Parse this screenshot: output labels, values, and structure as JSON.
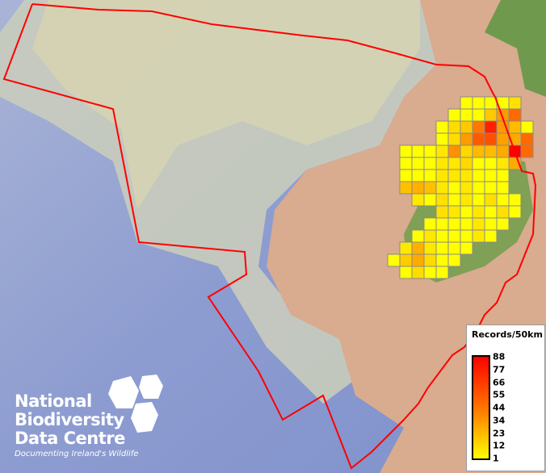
{
  "legend": {
    "title": "Records/50km",
    "ticks": [
      "88",
      "77",
      "66",
      "55",
      "44",
      "34",
      "23",
      "12",
      "1"
    ],
    "ramp_colors": [
      "#ff0000",
      "#ff8000",
      "#ffff00"
    ]
  },
  "logo": {
    "line1": "National",
    "line2": "Biodiversity",
    "line3": "Data Centre",
    "tagline": "Documenting Ireland's Wildlife"
  },
  "colors": {
    "boundary": "#ff0000",
    "grid_border": "#8a8a8a",
    "sea": "#8f9fd0",
    "land": "#d9ab8f"
  },
  "grid": [
    {
      "row": 0,
      "start": 6,
      "cells": [
        "#ffff00",
        "#ffff00",
        "#ffff00",
        "#ffff00",
        "#ffe000"
      ]
    },
    {
      "row": 1,
      "start": 5,
      "cells": [
        "#ffff00",
        "#ffff00",
        "#ffff00",
        "#ffc800",
        "#ff9a00",
        "#ff6a00"
      ]
    },
    {
      "row": 2,
      "start": 4,
      "cells": [
        "#ffff00",
        "#ffdc00",
        "#ffc800",
        "#ff7800",
        "#ff2000",
        "#ff9a00",
        "#ffbb00",
        "#ffff00"
      ]
    },
    {
      "row": 3,
      "start": 4,
      "cells": [
        "#ffff00",
        "#ffdc00",
        "#ff9a00",
        "#ff5a00",
        "#ff5000",
        "#ffa000",
        "#ffaa00",
        "#ff6a00"
      ]
    },
    {
      "row": 4,
      "start": 1,
      "cells": [
        "#ffff00",
        "#ffff00",
        "#ffff00",
        "#ffe800",
        "#ff9000",
        "#ffd800",
        "#ffbb00",
        "#ffbb00",
        "#ffaa00",
        "#ff0000",
        "#ff6a00"
      ]
    },
    {
      "row": 5,
      "start": 1,
      "cells": [
        "#ffff00",
        "#ffff00",
        "#ffff00",
        "#ffe800",
        "#ffe800",
        "#ffd800",
        "#ffff00",
        "#ffff00",
        "#ffe800",
        "#ffaa00"
      ]
    },
    {
      "row": 6,
      "start": 1,
      "cells": [
        "#ffff00",
        "#ffff00",
        "#ffff00",
        "#ffe800",
        "#ffe800",
        "#ffe800",
        "#ffff00",
        "#ffff00",
        "#ffff00"
      ]
    },
    {
      "row": 7,
      "start": 1,
      "cells": [
        "#ffc000",
        "#ffb000",
        "#ffc000",
        "#ffe800",
        "#ffff00",
        "#ffe800",
        "#ffff00",
        "#ffff00",
        "#ffff00"
      ]
    },
    {
      "row": 8,
      "start": 2,
      "cells": [
        "#ffe800",
        "#ffff00",
        "#ffe000",
        "#ffff00",
        "#ffe800",
        "#ffff00",
        "#ffe000",
        "#ffff00",
        "#ffff00"
      ]
    },
    {
      "row": 9,
      "start": 4,
      "cells": [
        "#ffe000",
        "#ffe800",
        "#ffff00",
        "#ffe800",
        "#ffff00",
        "#ffe000",
        "#ffff00"
      ]
    },
    {
      "row": 10,
      "start": 3,
      "cells": [
        "#ffff00",
        "#ffff00",
        "#ffff00",
        "#ffff00",
        "#ffe800",
        "#ffff00",
        "#ffff00"
      ]
    },
    {
      "row": 11,
      "start": 2,
      "cells": [
        "#ffff00",
        "#ffe800",
        "#ffff00",
        "#ffff00",
        "#ffff00",
        "#ffe800",
        "#ffff00"
      ]
    },
    {
      "row": 12,
      "start": 1,
      "cells": [
        "#ffe800",
        "#ffb000",
        "#ffe800",
        "#ffff00",
        "#ffff00",
        "#ffff00"
      ]
    },
    {
      "row": 13,
      "start": 0,
      "cells": [
        "#ffff00",
        "#ffcc00",
        "#ffaa00",
        "#ffdc00",
        "#ffff00",
        "#ffff00"
      ]
    },
    {
      "row": 14,
      "start": 1,
      "cells": [
        "#ffff00",
        "#ffdc00",
        "#ffff00",
        "#ffff00"
      ]
    }
  ]
}
